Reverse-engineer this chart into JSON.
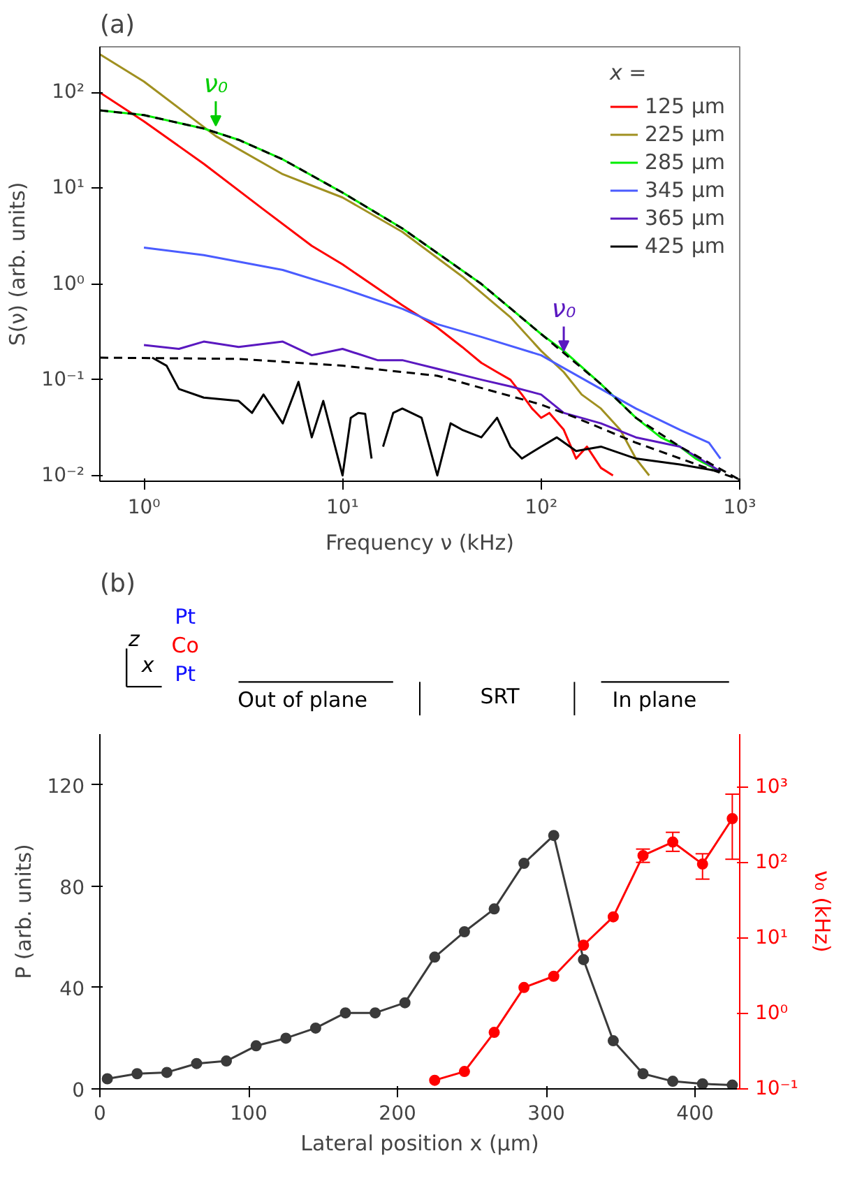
{
  "chart_data": [
    {
      "type": "line",
      "title": "(a)",
      "xlabel": "Frequency ν (kHz)",
      "ylabel": "S(ν) (arb. units)",
      "legend_title": "x =",
      "legend": "top right",
      "log": "xy",
      "xlim": [
        0.6,
        1000
      ],
      "ylim": [
        0.0087,
        300
      ],
      "xticks": [
        {
          "value": 1,
          "label": "10⁰"
        },
        {
          "value": 10,
          "label": "10¹"
        },
        {
          "value": 100,
          "label": "10²"
        },
        {
          "value": 1000,
          "label": "10³"
        }
      ],
      "yticks": [
        {
          "value": 0.01,
          "label": "10⁻²"
        },
        {
          "value": 0.1,
          "label": "10⁻¹"
        },
        {
          "value": 1,
          "label": "10⁰"
        },
        {
          "value": 10,
          "label": "10¹"
        },
        {
          "value": 100,
          "label": "10²"
        }
      ],
      "annotations": [
        {
          "text": "ν₀",
          "x": 2.3,
          "y": 45
        },
        {
          "text": "ν₀",
          "x": 130,
          "y": 0.2
        }
      ],
      "series": [
        {
          "name": "125 μm",
          "color": "#ff0000",
          "x": [
            0.6,
            1,
            2,
            4,
            7,
            10,
            15,
            20,
            30,
            40,
            50,
            60,
            70,
            80,
            90,
            100,
            110,
            130,
            150,
            170,
            200,
            230
          ],
          "values": [
            100,
            50,
            18,
            6,
            2.5,
            1.6,
            0.9,
            0.6,
            0.35,
            0.22,
            0.15,
            0.12,
            0.1,
            0.07,
            0.05,
            0.04,
            0.045,
            0.03,
            0.015,
            0.02,
            0.012,
            0.01
          ]
        },
        {
          "name": "225 μm",
          "color": "#a09020",
          "x": [
            0.6,
            1,
            2.3,
            5,
            10,
            20,
            40,
            70,
            100,
            130,
            160,
            200,
            250,
            300,
            350
          ],
          "values": [
            250,
            130,
            35,
            14,
            8,
            3.5,
            1.2,
            0.45,
            0.2,
            0.12,
            0.07,
            0.05,
            0.03,
            0.015,
            0.01
          ]
        },
        {
          "name": "285 μm",
          "color": "#00ee00",
          "x": [
            0.6,
            1,
            2,
            3,
            5,
            10,
            20,
            50,
            100,
            130,
            200,
            300,
            400,
            500,
            600,
            800
          ],
          "values": [
            65,
            58,
            42,
            32,
            20,
            9,
            3.8,
            1.0,
            0.3,
            0.2,
            0.09,
            0.04,
            0.025,
            0.02,
            0.015,
            0.011
          ]
        },
        {
          "name": "345 μm",
          "color": "#4a5cff",
          "x": [
            1,
            2,
            5,
            10,
            20,
            30,
            50,
            100,
            200,
            300,
            500,
            700,
            800
          ],
          "values": [
            2.4,
            2.0,
            1.4,
            0.9,
            0.55,
            0.38,
            0.28,
            0.18,
            0.08,
            0.05,
            0.03,
            0.022,
            0.015
          ]
        },
        {
          "name": "365 μm",
          "color": "#5a18c0",
          "x": [
            1,
            1.5,
            2,
            3,
            5,
            7,
            10,
            15,
            20,
            30,
            50,
            70,
            100,
            130,
            200,
            300,
            500,
            800
          ],
          "values": [
            0.23,
            0.21,
            0.25,
            0.22,
            0.25,
            0.18,
            0.21,
            0.16,
            0.16,
            0.13,
            0.1,
            0.085,
            0.07,
            0.045,
            0.035,
            0.025,
            0.02,
            0.011
          ]
        },
        {
          "name": "425 μm",
          "color": "#000000",
          "x": [
            1.1,
            1.3,
            1.5,
            2,
            3,
            3.5,
            4,
            5,
            6,
            7,
            8,
            10,
            11,
            12,
            13,
            14,
            15,
            16,
            18,
            20,
            25,
            30,
            35,
            40,
            50,
            60,
            70,
            80,
            100,
            120,
            150,
            200,
            300,
            500,
            800
          ],
          "values": [
            0.17,
            0.14,
            0.08,
            0.065,
            0.06,
            0.045,
            0.07,
            0.035,
            0.095,
            0.025,
            0.06,
            0.01,
            0.04,
            0.045,
            0.044,
            0.015,
            null,
            0.02,
            0.045,
            0.05,
            0.04,
            0.01,
            0.035,
            0.03,
            0.025,
            0.04,
            0.02,
            0.015,
            0.02,
            0.025,
            0.018,
            0.02,
            0.015,
            0.013,
            0.011
          ]
        },
        {
          "color": "#000000",
          "line_style": "dashed",
          "x": [
            0.6,
            1,
            2,
            3,
            5,
            10,
            20,
            50,
            100,
            200,
            300,
            500,
            1000
          ],
          "values": [
            65,
            58,
            42,
            32,
            20,
            9,
            3.8,
            1.0,
            0.3,
            0.09,
            0.04,
            0.02,
            0.009
          ]
        },
        {
          "color": "#000000",
          "line_style": "dashed",
          "x": [
            0.6,
            3,
            10,
            30,
            100,
            150,
            300,
            1000
          ],
          "values": [
            0.17,
            0.165,
            0.14,
            0.11,
            0.055,
            0.04,
            0.022,
            0.009
          ]
        }
      ]
    },
    {
      "type": "other",
      "title": "(b)",
      "annotations": [
        "Pt",
        "Co",
        "Pt",
        "z",
        "x",
        "Out of plane",
        "SRT",
        "In plane"
      ]
    },
    {
      "type": "line",
      "xlabel": "Lateral position x (μm)",
      "ylabel": "P (arb. units)",
      "y2label": "ν₀ (kHz)",
      "marker": "circle",
      "xlim": [
        0,
        430
      ],
      "ylim": [
        0,
        140
      ],
      "y2lim": [
        0.1,
        5000
      ],
      "log": "y2",
      "xticks": [
        0,
        100,
        200,
        300,
        400
      ],
      "yticks": [
        0,
        40,
        80,
        120
      ],
      "y2ticks": [
        {
          "value": 0.1,
          "label": "10⁻¹"
        },
        {
          "value": 1,
          "label": "10⁰"
        },
        {
          "value": 10,
          "label": "10¹"
        },
        {
          "value": 100,
          "label": "10²"
        },
        {
          "value": 1000,
          "label": "10³"
        }
      ],
      "series": [
        {
          "color": "#3a3a3a",
          "x": [
            5,
            25,
            45,
            65,
            85,
            105,
            125,
            145,
            165,
            185,
            205,
            225,
            245,
            265,
            285,
            305,
            325,
            345,
            365,
            385,
            405,
            425
          ],
          "values": [
            4,
            6,
            6.5,
            10,
            11,
            17,
            20,
            24,
            30,
            30,
            34,
            52,
            62,
            71,
            89,
            100,
            51,
            19,
            6,
            3,
            2,
            1.5
          ]
        },
        {
          "color": "#ff0000",
          "axis": "y2",
          "x": [
            225,
            245,
            265,
            285,
            305,
            325,
            345,
            365,
            385,
            405,
            425
          ],
          "values": [
            0.13,
            0.17,
            0.56,
            2.2,
            3.1,
            8,
            19,
            123,
            186,
            95,
            380
          ],
          "errors": [
            null,
            null,
            null,
            null,
            null,
            null,
            null,
            [
              100,
              150
            ],
            [
              140,
              250
            ],
            [
              60,
              130
            ],
            [
              110,
              800
            ]
          ]
        }
      ]
    }
  ]
}
